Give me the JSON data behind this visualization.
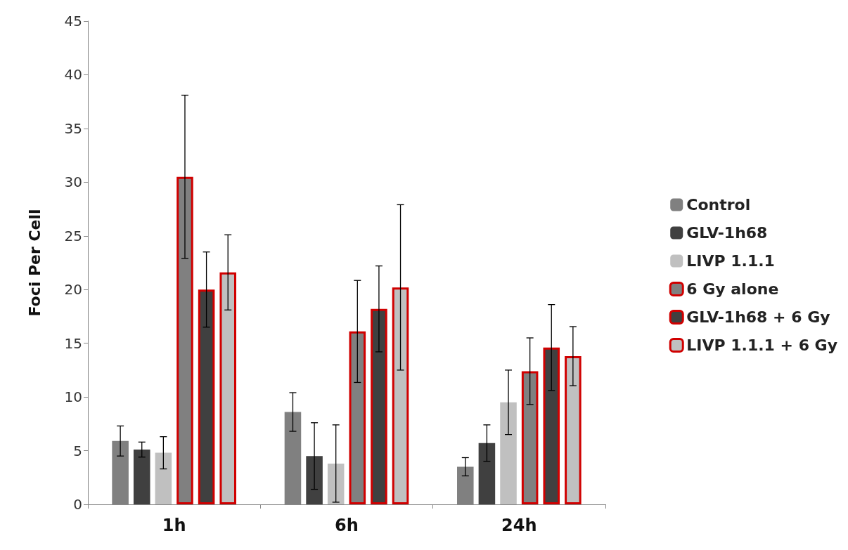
{
  "chart_data": {
    "type": "bar",
    "ylabel": "Foci Per Cell",
    "categories": [
      "1h",
      "6h",
      "24h"
    ],
    "series": [
      {
        "name": "Control",
        "color": "#808080",
        "values": [
          5.9,
          8.6,
          3.5
        ],
        "errors": [
          1.4,
          1.8,
          0.85
        ]
      },
      {
        "name": "GLV-1h68",
        "color": "#404040",
        "values": [
          5.1,
          4.5,
          5.7
        ],
        "errors": [
          0.7,
          3.1,
          1.7
        ]
      },
      {
        "name": "LIVP 1.1.1",
        "color": "#c0c0c0",
        "values": [
          4.8,
          3.8,
          9.5
        ],
        "errors": [
          1.5,
          3.6,
          3.0
        ]
      },
      {
        "name": "6 Gy alone",
        "color": "#808080",
        "values": [
          30.5,
          16.1,
          12.4
        ],
        "errors": [
          7.6,
          4.75,
          3.1
        ]
      },
      {
        "name": "GLV-1h68 + 6 Gy",
        "color": "#404040",
        "values": [
          20.0,
          18.2,
          14.6
        ],
        "errors": [
          3.5,
          4.0,
          4.0
        ]
      },
      {
        "name": "LIVP 1.1.1 + 6 Gy",
        "color": "#c0c0c0",
        "values": [
          21.6,
          20.2,
          13.8
        ],
        "errors": [
          3.5,
          7.7,
          2.75
        ]
      }
    ],
    "ylim": [
      0,
      45
    ],
    "yticks": [
      0,
      5,
      10,
      15,
      20,
      25,
      30,
      35,
      40,
      45
    ],
    "grid": false,
    "legend": "right"
  }
}
